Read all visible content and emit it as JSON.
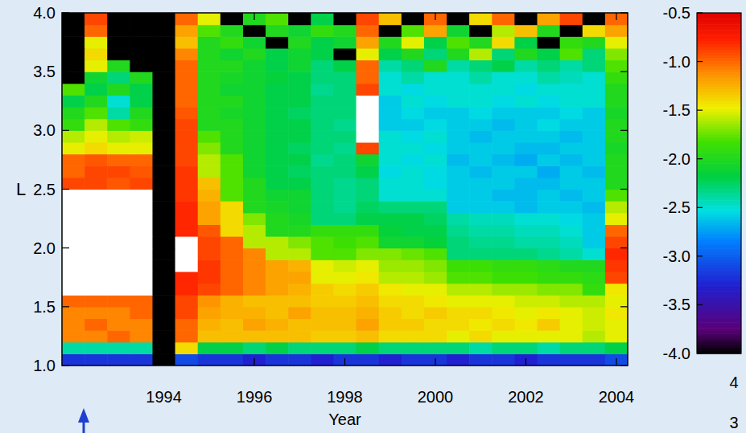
{
  "chart_data": {
    "type": "heatmap",
    "x_label": "Year",
    "y_label": "L",
    "xlim": [
      1991.75,
      2004.25
    ],
    "ylim": [
      1.0,
      4.0
    ],
    "xticks": [
      1994,
      1996,
      1998,
      2000,
      2002,
      2004
    ],
    "yticks": [
      {
        "value": 1.0,
        "label": "1.0"
      },
      1.5,
      {
        "value": 2.0,
        "label": "2.0"
      },
      2.5,
      {
        "value": 3.0,
        "label": "3.0"
      },
      3.5,
      {
        "value": 4.0,
        "label": "4.0"
      }
    ],
    "x_bins": [
      1991.75,
      1992.25,
      1992.75,
      1993.25,
      1993.75,
      1994.25,
      1994.75,
      1995.25,
      1995.75,
      1996.25,
      1996.75,
      1997.25,
      1997.75,
      1998.25,
      1998.75,
      1999.25,
      1999.75,
      2000.25,
      2000.75,
      2001.25,
      2001.75,
      2002.25,
      2002.75,
      2003.25,
      2003.75,
      2004.25
    ],
    "y_bins": [
      1.0,
      1.1,
      1.2,
      1.3,
      1.4,
      1.5,
      1.6,
      1.7,
      1.8,
      1.9,
      2.0,
      2.1,
      2.2,
      2.3,
      2.4,
      2.5,
      2.6,
      2.7,
      2.8,
      2.9,
      3.0,
      3.1,
      3.2,
      3.3,
      3.4,
      3.5,
      3.6,
      3.7,
      3.8,
      3.9,
      4.0
    ],
    "cells": [
      [
        -3.2,
        -3.2,
        -3.2,
        -3.2,
        null,
        -3.1,
        -3.2,
        -3.2,
        -3.3,
        -3.2,
        -3.2,
        -3.3,
        -3.2,
        -3.2,
        -3.3,
        -3.2,
        -3.2,
        -3.3,
        -3.2,
        -3.2,
        -3.3,
        -3.2,
        -3.2,
        -3.2,
        -3.1
      ],
      [
        -2.4,
        -2.4,
        -2.4,
        -2.4,
        null,
        -1.4,
        -2.2,
        -2.2,
        -2.3,
        -2.2,
        -2.3,
        -2.3,
        -2.3,
        -2.2,
        -2.3,
        -2.3,
        -2.3,
        -2.3,
        -2.4,
        -2.3,
        -2.3,
        -2.4,
        -2.3,
        -2.3,
        -2.2
      ],
      [
        -1.1,
        -1.1,
        -1.0,
        -1.1,
        null,
        -1.0,
        -1.3,
        -1.3,
        -1.3,
        -1.3,
        -1.3,
        -1.35,
        -1.35,
        -1.3,
        -1.4,
        -1.4,
        -1.4,
        -1.5,
        -1.4,
        -1.5,
        -1.5,
        -1.5,
        -1.5,
        -1.6,
        -1.5
      ],
      [
        -1.1,
        -1.0,
        -1.1,
        -1.1,
        null,
        -1.0,
        -1.25,
        -1.3,
        -1.2,
        -1.25,
        -1.3,
        -1.3,
        -1.3,
        -1.2,
        -1.35,
        -1.35,
        -1.4,
        -1.4,
        -1.45,
        -1.4,
        -1.45,
        -1.35,
        -1.5,
        -1.55,
        -1.5
      ],
      [
        -1.1,
        -1.1,
        -1.1,
        -1.0,
        null,
        -0.9,
        -1.2,
        -1.25,
        -1.25,
        -1.3,
        -1.2,
        -1.3,
        -1.3,
        -1.25,
        -1.35,
        -1.4,
        -1.35,
        -1.4,
        -1.4,
        -1.45,
        -1.5,
        -1.45,
        -1.5,
        -1.55,
        -1.45
      ],
      [
        -1.0,
        -1.0,
        -1.0,
        -1.0,
        null,
        -0.9,
        -1.15,
        -1.25,
        -1.3,
        -1.3,
        -1.3,
        -1.35,
        -1.35,
        -1.3,
        -1.4,
        -1.4,
        -1.45,
        -1.5,
        -1.5,
        -1.5,
        -1.55,
        -1.55,
        -1.6,
        -1.6,
        -1.5
      ],
      [
        -0.3,
        -0.3,
        -0.3,
        -0.3,
        null,
        -0.8,
        -0.9,
        -1.0,
        -1.1,
        -1.2,
        -1.25,
        -1.35,
        -1.4,
        -1.35,
        -1.45,
        -1.5,
        -1.5,
        -1.6,
        -1.6,
        -1.65,
        -1.65,
        -1.7,
        -1.7,
        -1.9,
        -1.45
      ],
      [
        -0.3,
        -0.3,
        -0.3,
        -0.3,
        null,
        -0.8,
        -0.85,
        -1.0,
        -1.1,
        -1.2,
        -1.2,
        -1.5,
        -1.5,
        -1.45,
        -1.6,
        -1.6,
        -1.65,
        -1.8,
        -1.8,
        -1.85,
        -1.85,
        -1.9,
        -1.9,
        -1.95,
        -0.9
      ],
      [
        -0.3,
        -0.3,
        -0.3,
        -0.3,
        null,
        -0.3,
        -0.85,
        -1.0,
        -1.1,
        -1.2,
        -1.25,
        -1.5,
        -1.55,
        -1.5,
        -1.65,
        -1.65,
        -1.7,
        -1.85,
        -1.85,
        -1.9,
        -1.9,
        -1.95,
        -2.0,
        -2.0,
        -0.85
      ],
      [
        -0.3,
        -0.3,
        -0.3,
        -0.3,
        null,
        -0.3,
        -0.9,
        -1.0,
        -1.1,
        -1.6,
        -1.6,
        -1.8,
        -1.8,
        -1.7,
        -1.7,
        -1.75,
        -1.8,
        -2.3,
        -2.3,
        -2.3,
        -2.3,
        -2.35,
        -2.4,
        -2.5,
        -0.8
      ],
      [
        -0.3,
        -0.3,
        -0.3,
        -0.3,
        null,
        -0.4,
        -0.9,
        -1.0,
        -1.6,
        -1.6,
        -1.7,
        -1.8,
        -1.85,
        -1.8,
        -2.1,
        -2.1,
        -2.15,
        -2.3,
        -2.35,
        -2.35,
        -2.4,
        -2.4,
        -2.45,
        -2.6,
        -0.9
      ],
      [
        -0.3,
        -0.3,
        -0.3,
        -0.3,
        null,
        -0.8,
        -0.95,
        -1.4,
        -1.6,
        -2.0,
        -2.0,
        -1.9,
        -1.9,
        -1.9,
        -2.15,
        -2.2,
        -2.2,
        -2.35,
        -2.4,
        -2.4,
        -2.45,
        -2.45,
        -2.5,
        -2.6,
        -1.0
      ],
      [
        -0.3,
        -0.3,
        -0.3,
        -0.3,
        null,
        -0.8,
        -1.2,
        -1.4,
        -1.7,
        -2.0,
        -2.05,
        -2.3,
        -2.3,
        -2.2,
        -2.2,
        -2.2,
        -2.25,
        -2.4,
        -2.45,
        -2.45,
        -2.5,
        -2.5,
        -2.55,
        -2.6,
        -1.5
      ],
      [
        -0.3,
        -0.3,
        -0.3,
        -0.3,
        null,
        -0.8,
        -1.2,
        -1.4,
        -2.0,
        -2.05,
        -2.1,
        -2.3,
        -2.35,
        -2.25,
        -2.3,
        -2.3,
        -2.3,
        -2.6,
        -2.6,
        -2.6,
        -2.65,
        -2.6,
        -2.6,
        -2.65,
        -1.6
      ],
      [
        -0.3,
        -0.3,
        -0.3,
        -0.3,
        null,
        -0.85,
        -1.25,
        -1.8,
        -2.0,
        -2.1,
        -2.1,
        -2.3,
        -2.35,
        -2.3,
        -2.5,
        -2.5,
        -2.5,
        -2.6,
        -2.6,
        -2.65,
        -2.65,
        -2.6,
        -2.65,
        -2.6,
        -1.8
      ],
      [
        -0.9,
        -0.9,
        -0.95,
        -0.9,
        null,
        -0.85,
        -1.3,
        -1.8,
        -2.0,
        -2.2,
        -2.2,
        -2.3,
        -2.35,
        -2.3,
        -2.5,
        -2.5,
        -2.55,
        -2.6,
        -2.6,
        -2.6,
        -2.65,
        -2.65,
        -2.6,
        -2.6,
        -2.0
      ],
      [
        -1.0,
        -0.9,
        -0.9,
        -0.95,
        null,
        -0.85,
        -1.6,
        -1.8,
        -2.1,
        -2.2,
        -2.25,
        -2.3,
        -2.3,
        -2.2,
        -2.55,
        -2.5,
        -2.55,
        -2.6,
        -2.65,
        -2.6,
        -2.6,
        -2.7,
        -2.6,
        -2.65,
        -2.0
      ],
      [
        -1.0,
        -0.95,
        -1.0,
        -1.0,
        null,
        -0.9,
        -1.6,
        -1.8,
        -2.1,
        -2.2,
        -2.2,
        -2.35,
        -2.3,
        -2.1,
        -2.5,
        -2.55,
        -2.5,
        -2.65,
        -2.6,
        -2.65,
        -2.7,
        -2.6,
        -2.65,
        -2.6,
        -2.0
      ],
      [
        -1.5,
        -1.4,
        -1.5,
        -1.5,
        null,
        -0.9,
        -1.7,
        -2.0,
        -2.1,
        -2.2,
        -2.25,
        -2.3,
        -2.35,
        -0.9,
        -2.5,
        -2.5,
        -2.55,
        -2.6,
        -2.6,
        -2.6,
        -2.65,
        -2.65,
        -2.6,
        -2.6,
        -2.05
      ],
      [
        -1.6,
        -1.5,
        -1.6,
        -1.55,
        null,
        -0.9,
        -1.8,
        -2.0,
        -2.1,
        -2.2,
        -2.2,
        -2.3,
        -2.3,
        -0.3,
        -2.5,
        -2.55,
        -2.5,
        -2.6,
        -2.65,
        -2.6,
        -2.6,
        -2.6,
        -2.65,
        -2.6,
        -2.0
      ],
      [
        -1.9,
        -1.6,
        -1.8,
        -1.9,
        null,
        -0.9,
        -2.0,
        -2.0,
        -2.1,
        -2.2,
        -2.2,
        -2.3,
        -2.35,
        -0.3,
        -2.6,
        -2.6,
        -2.55,
        -2.6,
        -2.6,
        -2.65,
        -2.6,
        -2.55,
        -2.6,
        -2.6,
        -2.0
      ],
      [
        -2.0,
        -1.8,
        -2.4,
        -2.0,
        null,
        -0.95,
        -2.0,
        -2.05,
        -2.1,
        -2.2,
        -2.25,
        -2.3,
        -2.3,
        -0.3,
        -2.6,
        -2.55,
        -2.6,
        -2.6,
        -2.55,
        -2.6,
        -2.6,
        -2.6,
        -2.55,
        -2.6,
        -2.05
      ],
      [
        -2.2,
        -2.0,
        -2.5,
        -2.2,
        null,
        -1.0,
        -2.0,
        -2.0,
        -2.1,
        -2.2,
        -2.2,
        -2.3,
        -2.3,
        -0.3,
        -2.6,
        -2.5,
        -2.55,
        -2.5,
        -2.5,
        -2.55,
        -2.5,
        -2.55,
        -2.5,
        -2.5,
        -2.0
      ],
      [
        -1.8,
        -2.2,
        -2.0,
        -2.2,
        null,
        -1.0,
        -2.0,
        -2.1,
        -2.1,
        -2.2,
        -2.2,
        -2.35,
        -2.3,
        -0.9,
        -2.5,
        -2.55,
        -2.5,
        -2.5,
        -2.5,
        -2.5,
        -2.55,
        -2.5,
        -2.5,
        -2.5,
        -2.0
      ],
      [
        null,
        -2.1,
        -2.3,
        -2.0,
        null,
        -1.0,
        -2.0,
        -2.05,
        -2.1,
        -2.15,
        -2.2,
        -2.3,
        -2.3,
        -1.0,
        -2.5,
        -2.4,
        -2.5,
        -2.5,
        -2.4,
        -2.5,
        -2.5,
        -2.4,
        -2.45,
        -2.5,
        -1.9
      ],
      [
        null,
        -1.5,
        -2.0,
        null,
        null,
        -1.0,
        -2.0,
        -2.0,
        -2.1,
        -2.2,
        -2.1,
        -2.3,
        -2.2,
        -1.0,
        -2.4,
        -2.3,
        -2.0,
        -2.4,
        -2.3,
        -2.2,
        -2.4,
        -2.3,
        -2.4,
        -2.3,
        -1.8
      ],
      [
        null,
        -1.4,
        null,
        null,
        null,
        -1.1,
        -2.0,
        -2.1,
        -2.0,
        -2.2,
        -2.1,
        -2.2,
        null,
        -1.5,
        -2.2,
        -2.0,
        -2.3,
        -2.0,
        -1.6,
        -2.3,
        -2.0,
        -2.2,
        -1.8,
        -2.3,
        -1.7
      ],
      [
        null,
        -1.5,
        null,
        null,
        null,
        -1.3,
        -2.0,
        -1.9,
        -2.1,
        null,
        -2.0,
        -2.2,
        -2.1,
        -1.2,
        -2.0,
        -1.5,
        -2.2,
        -1.8,
        -2.0,
        -1.4,
        -2.2,
        null,
        -1.9,
        -2.0,
        -1.5
      ],
      [
        null,
        -1.0,
        null,
        null,
        null,
        -1.2,
        -1.8,
        -2.0,
        null,
        -2.0,
        -2.1,
        -1.9,
        -2.0,
        -1.0,
        null,
        -1.8,
        -1.2,
        -2.1,
        null,
        -1.6,
        -1.3,
        -2.0,
        null,
        -1.4,
        -1.2
      ],
      [
        null,
        -0.9,
        null,
        null,
        null,
        -1.0,
        -1.5,
        null,
        -2.0,
        -1.8,
        null,
        -2.2,
        null,
        -0.9,
        -1.3,
        null,
        -1.0,
        null,
        -1.4,
        -1.0,
        null,
        -1.2,
        -0.9,
        null,
        -1.0
      ]
    ],
    "color_range": [
      -4.0,
      -0.5
    ],
    "color_ticks": [
      -0.5,
      {
        "value": -1.0,
        "label": "-1.0"
      },
      -1.5,
      {
        "value": -2.0,
        "label": "-2.0"
      },
      -2.5,
      {
        "value": -3.0,
        "label": "-3.0"
      },
      -3.5,
      {
        "value": -4.0,
        "label": "-4.0"
      }
    ],
    "annotations": [
      "4",
      "3"
    ]
  }
}
